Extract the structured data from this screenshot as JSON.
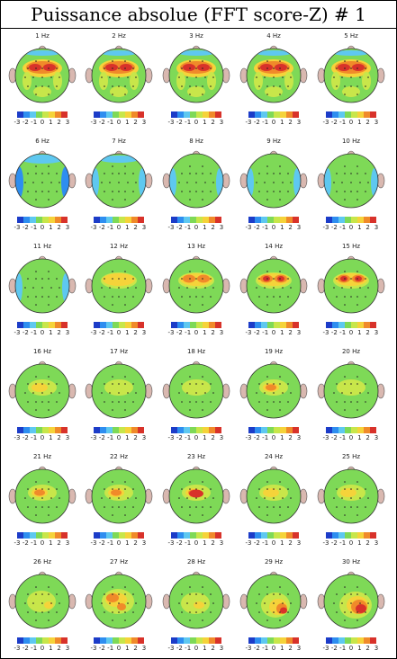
{
  "title": "Puissance absolue (FFT score-Z) # 1",
  "colorbar": {
    "ticks": [
      "-3",
      "-2",
      "-1",
      "0",
      "1",
      "2",
      "3"
    ],
    "colors": [
      "#1c3cc8",
      "#2e8ef0",
      "#5ec8f0",
      "#7ed957",
      "#c8e64a",
      "#f5d33a",
      "#f08a2a",
      "#d8322a"
    ]
  },
  "chart_data": {
    "type": "heatmap",
    "description_scale": "z-score colour scale from -3 to 3",
    "panels": [
      {
        "label": "1 Hz"
      },
      {
        "label": "2 Hz"
      },
      {
        "label": "3 Hz"
      },
      {
        "label": "4 Hz"
      },
      {
        "label": "5 Hz"
      },
      {
        "label": "6 Hz"
      },
      {
        "label": "7 Hz"
      },
      {
        "label": "8 Hz"
      },
      {
        "label": "9 Hz"
      },
      {
        "label": "10 Hz"
      },
      {
        "label": "11 Hz"
      },
      {
        "label": "12 Hz"
      },
      {
        "label": "13 Hz"
      },
      {
        "label": "14 Hz"
      },
      {
        "label": "15 Hz"
      },
      {
        "label": "16 Hz"
      },
      {
        "label": "17 Hz"
      },
      {
        "label": "18 Hz"
      },
      {
        "label": "19 Hz"
      },
      {
        "label": "20 Hz"
      },
      {
        "label": "21 Hz"
      },
      {
        "label": "22 Hz"
      },
      {
        "label": "23 Hz"
      },
      {
        "label": "24 Hz"
      },
      {
        "label": "25 Hz"
      },
      {
        "label": "26 Hz"
      },
      {
        "label": "27 Hz"
      },
      {
        "label": "28 Hz"
      },
      {
        "label": "29 Hz"
      },
      {
        "label": "30 Hz"
      }
    ],
    "zlim": [
      -3,
      3
    ]
  }
}
